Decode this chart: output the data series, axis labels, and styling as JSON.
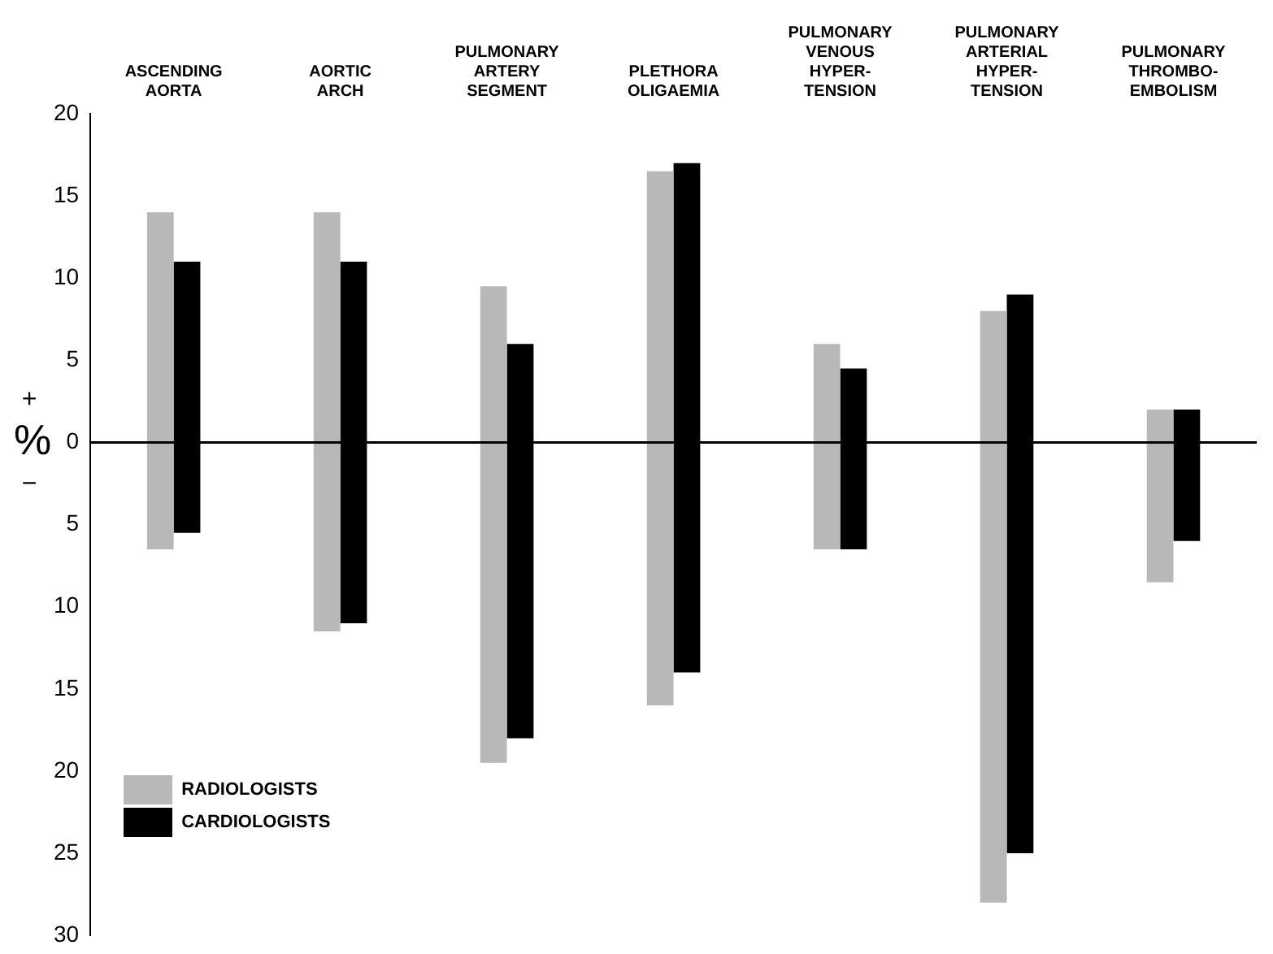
{
  "chart_data": {
    "type": "bar",
    "ylabel": "%",
    "annotations": [
      "+",
      "−"
    ],
    "categories": [
      "ASCENDING\nAORTA",
      "AORTIC\nARCH",
      "PULMONARY\nARTERY\nSEGMENT",
      "PLETHORA\nOLIGAEMIA",
      "PULMONARY\nVENOUS\nHYPER-\nTENSION",
      "PULMONARY\nARTERIAL\nHYPER-\nTENSION",
      "PULMONARY\nTHROMBO-\nEMBOLISM"
    ],
    "series": [
      {
        "name": "RADIOLOGISTS",
        "color": "#b8b8b8",
        "base": [
          -6.5,
          -11.5,
          -19.5,
          -16,
          -6.5,
          -28,
          -8.5
        ],
        "values": [
          20.5,
          25.5,
          29,
          32.5,
          12.5,
          36,
          10.5
        ]
      },
      {
        "name": "CARDIOLOGISTS",
        "color": "#000000",
        "base": [
          -5.5,
          -11,
          -18,
          -14,
          -6.5,
          -25,
          -6
        ],
        "values": [
          16.5,
          22,
          24,
          31,
          11,
          34,
          8
        ]
      }
    ],
    "ylim": [
      -30,
      20
    ],
    "yticks": [
      {
        "value": -30,
        "label": "30"
      },
      {
        "value": -25,
        "label": "25"
      },
      {
        "value": -20,
        "label": "20"
      },
      {
        "value": -15,
        "label": "15"
      },
      {
        "value": -10,
        "label": "10"
      },
      {
        "value": -5,
        "label": "5"
      },
      0,
      5,
      10,
      15,
      20
    ],
    "ref_lines": [
      {
        "axis": "y",
        "value": 0,
        "color": "#000000"
      }
    ],
    "grid": false,
    "legend": "bottom left"
  }
}
